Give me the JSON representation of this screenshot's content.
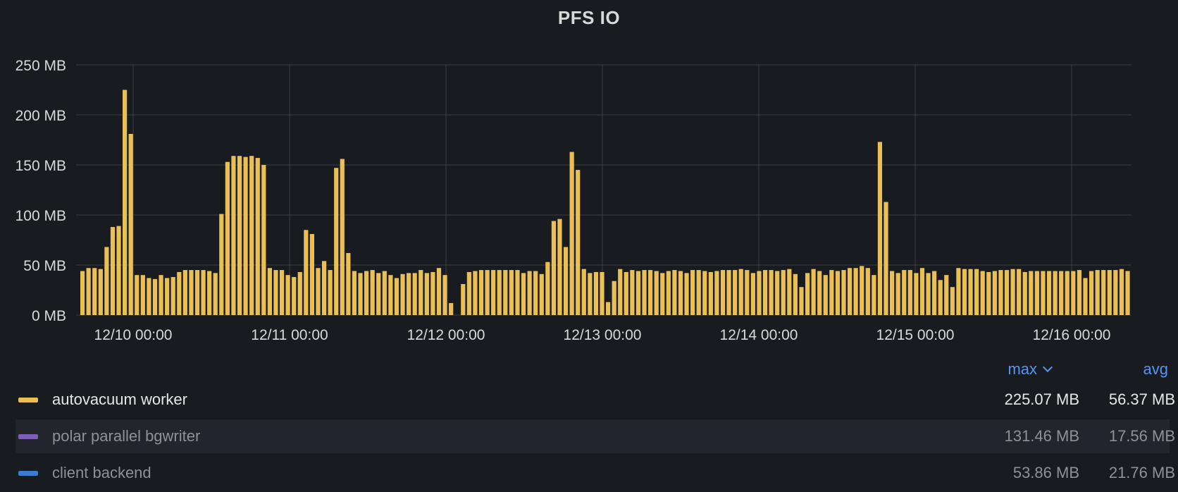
{
  "panel": {
    "title": "PFS IO"
  },
  "colors": {
    "background": "#181b1f",
    "grid": "#3b3e44",
    "axis_text": "#d8d9da",
    "bar": "#eac054",
    "legend_header": "#5794f2"
  },
  "legend": {
    "headers": {
      "max": "max",
      "avg": "avg",
      "sort_icon": "chevron-down-icon"
    },
    "series": [
      {
        "name": "autovacuum worker",
        "color": "#eac054",
        "max": "225.07 MB",
        "avg": "56.37 MB"
      },
      {
        "name": "polar parallel bgwriter",
        "color": "#7b5fb6",
        "max": "131.46 MB",
        "avg": "17.56 MB"
      },
      {
        "name": "client backend",
        "color": "#3b7bd0",
        "max": "53.86 MB",
        "avg": "21.76 MB"
      }
    ]
  },
  "chart_data": {
    "type": "bar",
    "title": "PFS IO",
    "xlabel": "",
    "ylabel": "",
    "y_unit": "MB",
    "ylim": [
      0,
      250
    ],
    "y_ticks": [
      "0 MB",
      "50 MB",
      "100 MB",
      "150 MB",
      "200 MB",
      "250 MB"
    ],
    "x_ticks": [
      "12/10 00:00",
      "12/11 00:00",
      "12/12 00:00",
      "12/13 00:00",
      "12/14 00:00",
      "12/15 00:00",
      "12/16 00:00"
    ],
    "grid": true,
    "visible_series": "autovacuum worker",
    "series": [
      {
        "name": "autovacuum worker",
        "values": [
          44,
          47,
          47,
          46,
          68,
          88,
          89,
          225,
          181,
          40,
          40,
          37,
          36,
          40,
          37,
          38,
          43,
          45,
          45,
          45,
          45,
          44,
          42,
          101,
          153,
          159,
          159,
          158,
          159,
          157,
          150,
          47,
          45,
          45,
          40,
          38,
          43,
          85,
          81,
          47,
          54,
          45,
          147,
          156,
          62,
          44,
          42,
          44,
          45,
          42,
          44,
          40,
          37,
          41,
          42,
          42,
          45,
          42,
          43,
          47,
          40,
          12,
          0,
          31,
          43,
          44,
          45,
          45,
          45,
          45,
          45,
          45,
          45,
          42,
          44,
          44,
          41,
          53,
          94,
          96,
          68,
          163,
          145,
          46,
          42,
          43,
          43,
          13,
          34,
          46,
          43,
          45,
          44,
          45,
          45,
          44,
          42,
          44,
          45,
          44,
          42,
          45,
          45,
          44,
          43,
          44,
          45,
          45,
          45,
          46,
          45,
          42,
          44,
          45,
          45,
          44,
          45,
          46,
          41,
          28,
          42,
          46,
          44,
          40,
          45,
          44,
          45,
          47,
          47,
          49,
          47,
          40,
          173,
          113,
          44,
          42,
          45,
          45,
          42,
          47,
          42,
          44,
          35,
          40,
          28,
          47,
          46,
          46,
          46,
          44,
          43,
          44,
          45,
          45,
          46,
          46,
          43,
          44,
          44,
          44,
          44,
          44,
          44,
          44,
          44,
          45,
          37,
          44,
          45,
          45,
          45,
          45,
          46,
          44
        ]
      }
    ]
  }
}
